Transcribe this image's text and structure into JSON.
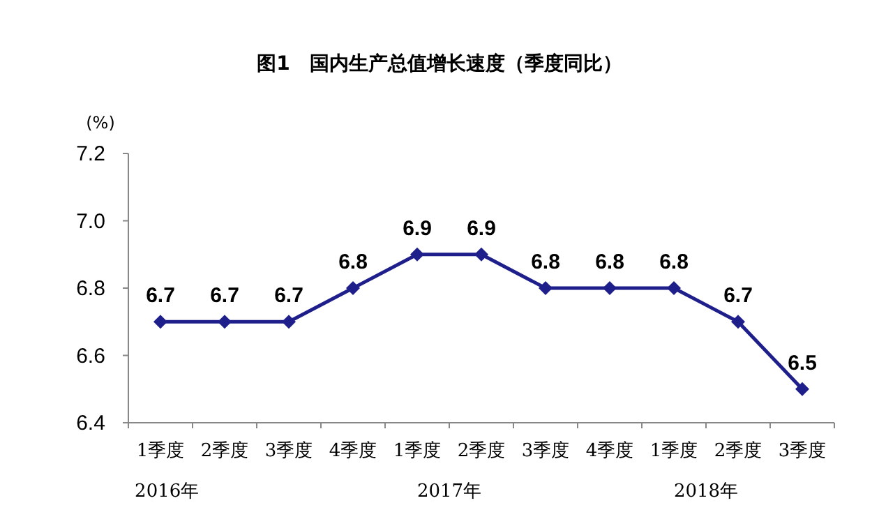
{
  "chart_data": {
    "type": "line",
    "title": "图1　国内生产总值增长速度（季度同比）",
    "ylabel": "(%)",
    "categories": [
      "1季度",
      "2季度",
      "3季度",
      "4季度",
      "1季度",
      "2季度",
      "3季度",
      "4季度",
      "1季度",
      "2季度",
      "3季度"
    ],
    "values": [
      6.7,
      6.7,
      6.7,
      6.8,
      6.9,
      6.9,
      6.8,
      6.8,
      6.8,
      6.7,
      6.5
    ],
    "color": "#1f1f8c",
    "marker": "diamond",
    "data_labels": true,
    "ylim": [
      6.4,
      7.2
    ],
    "yticks": [
      6.4,
      6.6,
      6.8,
      {
        "value": 7.0,
        "label": "7.0"
      },
      7.2
    ],
    "annotations": [
      "2016年",
      "2017年",
      "2018年"
    ]
  }
}
